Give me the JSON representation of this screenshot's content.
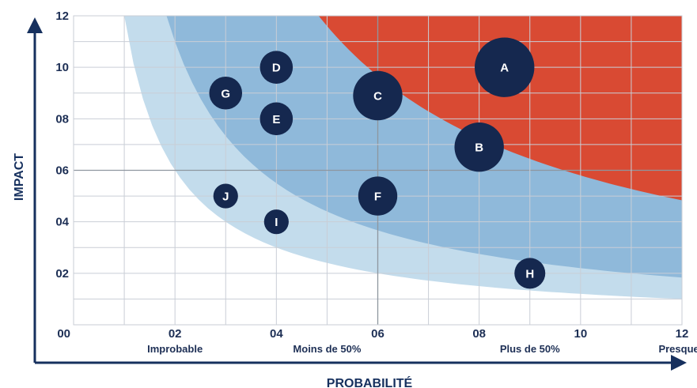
{
  "chart_data": {
    "type": "scatter",
    "xlabel": "PROBABILITÉ",
    "ylabel": "IMPACT",
    "xlim": [
      0,
      12
    ],
    "ylim": [
      0,
      12
    ],
    "x_ticks": [
      "00",
      "02",
      "04",
      "06",
      "08",
      "10",
      "12"
    ],
    "y_ticks": [
      "00",
      "02",
      "04",
      "06",
      "08",
      "10",
      "12"
    ],
    "x_categories": [
      "Improbable",
      "Moins de 50%",
      "Plus de 50%",
      "Presque certain"
    ],
    "grid": true,
    "zones": [
      {
        "name": "low",
        "color": "#c3dcec"
      },
      {
        "name": "medium",
        "color": "#8fb9da"
      },
      {
        "name": "high",
        "color": "#d94a33"
      }
    ],
    "points": [
      {
        "label": "A",
        "x": 8.5,
        "y": 10.0,
        "size": 5.8
      },
      {
        "label": "B",
        "x": 8.0,
        "y": 6.9,
        "size": 4.8
      },
      {
        "label": "C",
        "x": 6.0,
        "y": 8.9,
        "size": 4.8
      },
      {
        "label": "D",
        "x": 4.0,
        "y": 10.0,
        "size": 3.2
      },
      {
        "label": "E",
        "x": 4.0,
        "y": 8.0,
        "size": 3.2
      },
      {
        "label": "F",
        "x": 6.0,
        "y": 5.0,
        "size": 3.8
      },
      {
        "label": "G",
        "x": 3.0,
        "y": 9.0,
        "size": 3.2
      },
      {
        "label": "H",
        "x": 9.0,
        "y": 2.0,
        "size": 3.0
      },
      {
        "label": "I",
        "x": 4.0,
        "y": 4.0,
        "size": 2.4
      },
      {
        "label": "J",
        "x": 3.0,
        "y": 5.0,
        "size": 2.4
      }
    ],
    "colors": {
      "bubble": "#15284f",
      "text": "#1d2f55",
      "grid": "#c9ced6",
      "axis": "#16305e"
    }
  }
}
